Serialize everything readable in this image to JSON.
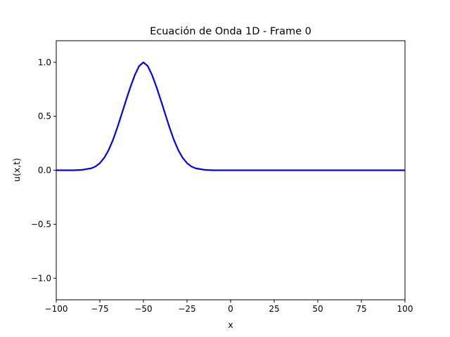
{
  "chart_data": {
    "type": "line",
    "title": "Ecuación de Onda 1D - Frame 0",
    "xlabel": "x",
    "ylabel": "u(x,t)",
    "xlim": [
      -100,
      100
    ],
    "ylim": [
      -1.2,
      1.2
    ],
    "xticks": [
      -100,
      -75,
      -50,
      -25,
      0,
      25,
      50,
      75,
      100
    ],
    "xtick_labels": [
      "−100",
      "−75",
      "−50",
      "−25",
      "0",
      "25",
      "50",
      "75",
      "100"
    ],
    "yticks": [
      -1.0,
      -0.5,
      0.0,
      0.5,
      1.0
    ],
    "ytick_labels": [
      "−1.0",
      "−0.5",
      "0.0",
      "0.5",
      "1.0"
    ],
    "grid": false,
    "series": [
      {
        "color": "#0000ff",
        "x": [
          -100,
          -95,
          -90,
          -85,
          -80,
          -77.5,
          -75,
          -72.5,
          -70,
          -67.5,
          -65,
          -62.5,
          -60,
          -57.5,
          -55,
          -52.5,
          -50,
          -47.5,
          -45,
          -42.5,
          -40,
          -37.5,
          -35,
          -32.5,
          -30,
          -27.5,
          -25,
          -22.5,
          -20,
          -15,
          -10,
          0,
          25,
          50,
          75,
          100
        ],
        "y": [
          0.0,
          0.0,
          0.0,
          0.004,
          0.018,
          0.035,
          0.066,
          0.115,
          0.186,
          0.28,
          0.394,
          0.52,
          0.647,
          0.77,
          0.88,
          0.965,
          1.0,
          0.965,
          0.88,
          0.77,
          0.647,
          0.52,
          0.394,
          0.28,
          0.186,
          0.115,
          0.066,
          0.035,
          0.018,
          0.004,
          0.0,
          0.0,
          0.0,
          0.0,
          0.0,
          0.0
        ]
      }
    ]
  }
}
